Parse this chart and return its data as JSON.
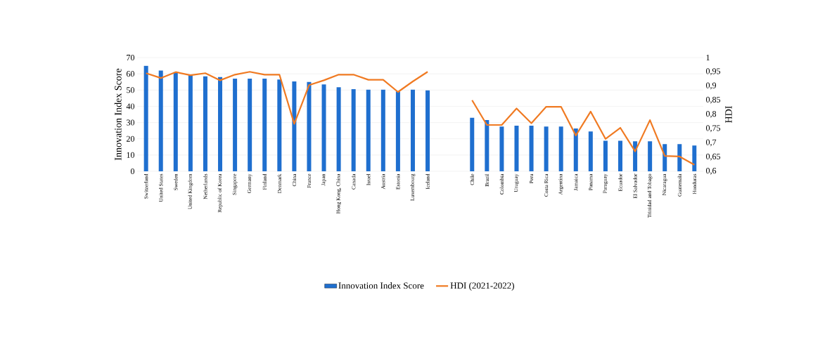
{
  "chart_data": {
    "type": "bar",
    "categories": [
      "Switzerland",
      "United States",
      "Sweden",
      "United Kingdom",
      "Netherlands",
      "Republic of Korea",
      "Singapore",
      "Germany",
      "Finland",
      "Denmark",
      "China",
      "France",
      "Japan",
      "Hong Kong, China",
      "Canada",
      "Israel",
      "Austria",
      "Estonia",
      "Luxembourg",
      "Iceland",
      null,
      null,
      "Chile",
      "Brazil",
      "Colombia",
      "Uruguay",
      "Peru",
      "Costa Rica",
      "Argentina",
      "Jamaica",
      "Panama",
      "Paraguay",
      "Ecuador",
      "El Salvador",
      "Trinidad and Tobago",
      "Nicaragua",
      "Guatemala",
      "Honduras"
    ],
    "series": [
      {
        "name": "Innovation Index Score",
        "color": "#1f6fcf",
        "values": [
          64.9,
          62,
          61,
          59.6,
          58.4,
          58,
          57,
          57,
          57,
          56.5,
          55.3,
          55,
          53.5,
          51.7,
          50.6,
          50.2,
          50.2,
          49.2,
          50.2,
          49.8,
          null,
          null,
          32.9,
          31.5,
          27.6,
          28.1,
          28.1,
          27.6,
          27.6,
          26.4,
          24.5,
          18.8,
          18.8,
          18.5,
          18.5,
          16.7,
          16.7,
          15.9
        ]
      },
      {
        "name": "HDI (2021-2022)",
        "type": "line",
        "axis": "y2",
        "color": "#f07a22",
        "values": [
          0.945,
          0.928,
          0.949,
          0.938,
          0.945,
          0.92,
          0.94,
          0.95,
          0.94,
          0.94,
          0.767,
          0.903,
          0.92,
          0.94,
          0.94,
          0.922,
          0.922,
          0.879,
          0.916,
          0.95,
          null,
          null,
          0.85,
          0.763,
          0.763,
          0.821,
          0.769,
          0.827,
          0.827,
          0.726,
          0.81,
          0.714,
          0.753,
          0.67,
          0.78,
          0.654,
          0.652,
          0.623
        ]
      }
    ],
    "ylabel": "Innovation Index Score",
    "y2label": "HDI",
    "ylim": [
      0,
      70
    ],
    "yticks": [
      0,
      10,
      20,
      30,
      40,
      50,
      60,
      70
    ],
    "y2lim": [
      0.6,
      1
    ],
    "y2ticks": [
      {
        "value": 0.6,
        "label": "0,6"
      },
      {
        "value": 0.65,
        "label": "0,65"
      },
      {
        "value": 0.7,
        "label": "0,7"
      },
      {
        "value": 0.75,
        "label": "0,75"
      },
      {
        "value": 0.8,
        "label": "0,8"
      },
      {
        "value": 0.85,
        "label": "0,85"
      },
      {
        "value": 0.9,
        "label": "0,9"
      },
      {
        "value": 0.95,
        "label": "0,95"
      },
      {
        "value": 1,
        "label": "1"
      }
    ],
    "grid": "y",
    "legend": "bottom"
  }
}
